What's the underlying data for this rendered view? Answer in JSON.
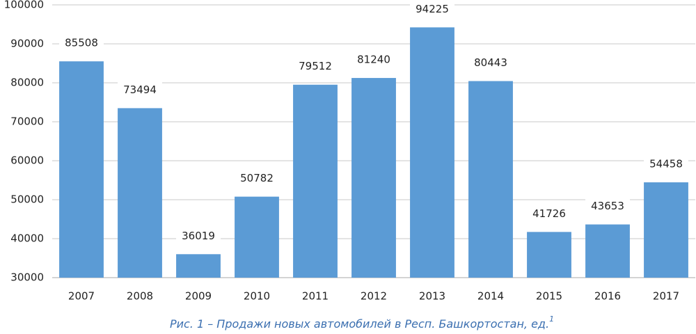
{
  "chart_data": {
    "type": "bar",
    "title": "Рис. 1 – Продажи новых автомобилей в Респ. Башкортостан, ед.",
    "title_superscript": "1",
    "categories": [
      "2007",
      "2008",
      "2009",
      "2010",
      "2011",
      "2012",
      "2013",
      "2014",
      "2015",
      "2016",
      "2017"
    ],
    "values": [
      85508,
      73494,
      36019,
      50782,
      79512,
      81240,
      94225,
      80443,
      41726,
      43653,
      54458
    ],
    "color": "#5b9bd5",
    "ylim": [
      30000,
      100000
    ],
    "yticks": [
      30000,
      40000,
      50000,
      60000,
      70000,
      80000,
      90000,
      100000
    ],
    "grid": true
  }
}
